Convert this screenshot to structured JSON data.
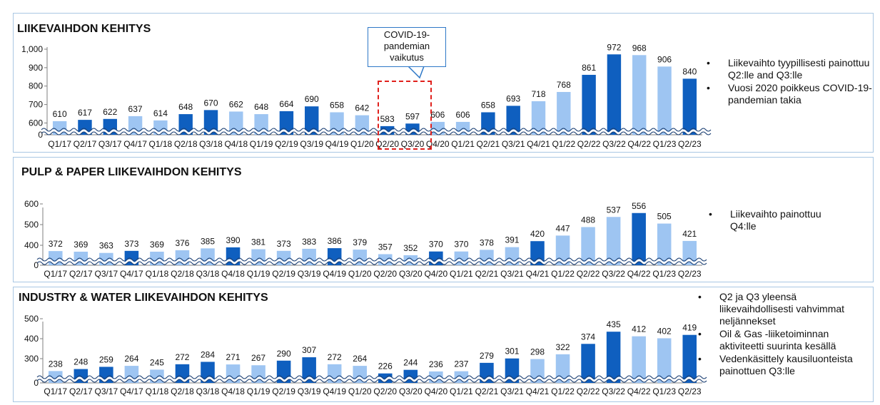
{
  "colors": {
    "light": "#9ec5f2",
    "dark": "#0f5fbf",
    "axis": "#7f7f7f",
    "border": "#a9c7e3",
    "callout_border": "#2e78c7",
    "dashed": "#e0201c"
  },
  "callout": {
    "line1": "COVID-19-",
    "line2": "pandemian",
    "line3": "vaikutus"
  },
  "panels": [
    {
      "title": "LIIKEVAIHDON KEHITYS",
      "bullets": [
        "Liikevaihto tyypillisesti painottuu Q2:lle and Q3:lle",
        "Vuosi 2020 poikkeus COVID-19-pandemian takia"
      ]
    },
    {
      "title": "PULP & PAPER LIIKEVAIHDON KEHITYS",
      "bullets": [
        "Liikevaihto painottuu Q4:lle"
      ]
    },
    {
      "title": "INDUSTRY & WATER LIIKEVAIHDON KEHITYS",
      "bullets": [
        "Q2 ja Q3 yleensä liikevaihdollisesti vahvimmat neljännekset",
        "Oil & Gas -liiketoiminnan aktiviteetti suurinta kesällä",
        "Vedenkäsittely kausiluonteista painottuen Q3:lle"
      ]
    }
  ],
  "chart_data": [
    {
      "type": "bar",
      "title": "LIIKEVAIHDON KEHITYS",
      "categories": [
        "Q1/17",
        "Q2/17",
        "Q3/17",
        "Q4/17",
        "Q1/18",
        "Q2/18",
        "Q3/18",
        "Q4/18",
        "Q1/19",
        "Q2/19",
        "Q3/19",
        "Q4/19",
        "Q1/20",
        "Q2/20",
        "Q3/20",
        "Q4/20",
        "Q1/21",
        "Q2/21",
        "Q3/21",
        "Q4/21",
        "Q1/22",
        "Q2/22",
        "Q3/22",
        "Q4/22",
        "Q1/23",
        "Q2/23"
      ],
      "values": [
        610,
        617,
        622,
        637,
        614,
        648,
        670,
        662,
        648,
        664,
        690,
        658,
        642,
        583,
        597,
        606,
        606,
        658,
        693,
        718,
        768,
        861,
        972,
        968,
        906,
        840
      ],
      "dark": [
        false,
        true,
        true,
        false,
        false,
        true,
        true,
        false,
        false,
        true,
        true,
        false,
        false,
        true,
        true,
        false,
        false,
        true,
        true,
        false,
        false,
        true,
        true,
        false,
        false,
        true
      ],
      "yticks": [
        "0",
        "600",
        "700",
        "800",
        "900",
        "1,000"
      ],
      "ylim": [
        0,
        1000
      ],
      "axis_break": true
    },
    {
      "type": "bar",
      "title": "PULP & PAPER LIIKEVAIHDON KEHITYS",
      "categories": [
        "Q1/17",
        "Q2/17",
        "Q3/17",
        "Q4/17",
        "Q1/18",
        "Q2/18",
        "Q3/18",
        "Q4/18",
        "Q1/19",
        "Q2/19",
        "Q3/19",
        "Q4/19",
        "Q1/20",
        "Q2/20",
        "Q3/20",
        "Q4/20",
        "Q1/21",
        "Q2/21",
        "Q3/21",
        "Q4/21",
        "Q1/22",
        "Q2/22",
        "Q3/22",
        "Q4/22",
        "Q1/23",
        "Q2/23"
      ],
      "values": [
        372,
        369,
        363,
        373,
        369,
        376,
        385,
        390,
        381,
        373,
        383,
        386,
        379,
        357,
        352,
        370,
        370,
        378,
        391,
        420,
        447,
        488,
        537,
        556,
        505,
        421
      ],
      "dark": [
        false,
        false,
        false,
        true,
        false,
        false,
        false,
        true,
        false,
        false,
        false,
        true,
        false,
        false,
        false,
        true,
        false,
        false,
        false,
        true,
        false,
        false,
        false,
        true,
        false,
        false
      ],
      "yticks": [
        "0",
        "400",
        "500",
        "600"
      ],
      "ylim": [
        0,
        600
      ],
      "axis_break": true
    },
    {
      "type": "bar",
      "title": "INDUSTRY & WATER LIIKEVAIHDON KEHITYS",
      "categories": [
        "Q1/17",
        "Q2/17",
        "Q3/17",
        "Q4/17",
        "Q1/18",
        "Q2/18",
        "Q3/18",
        "Q4/18",
        "Q1/19",
        "Q2/19",
        "Q3/19",
        "Q4/19",
        "Q1/20",
        "Q2/20",
        "Q3/20",
        "Q4/20",
        "Q1/21",
        "Q2/21",
        "Q3/21",
        "Q4/21",
        "Q1/22",
        "Q2/22",
        "Q3/22",
        "Q4/22",
        "Q1/23",
        "Q2/23"
      ],
      "values": [
        238,
        248,
        259,
        264,
        245,
        272,
        284,
        271,
        267,
        290,
        307,
        272,
        264,
        226,
        244,
        236,
        237,
        279,
        301,
        298,
        322,
        374,
        435,
        412,
        402,
        419
      ],
      "dark": [
        false,
        true,
        true,
        false,
        false,
        true,
        true,
        false,
        false,
        true,
        true,
        false,
        false,
        true,
        true,
        false,
        false,
        true,
        true,
        false,
        false,
        true,
        true,
        false,
        false,
        true
      ],
      "yticks": [
        "0",
        "300",
        "400",
        "500"
      ],
      "ylim": [
        0,
        500
      ],
      "axis_break": true
    }
  ]
}
